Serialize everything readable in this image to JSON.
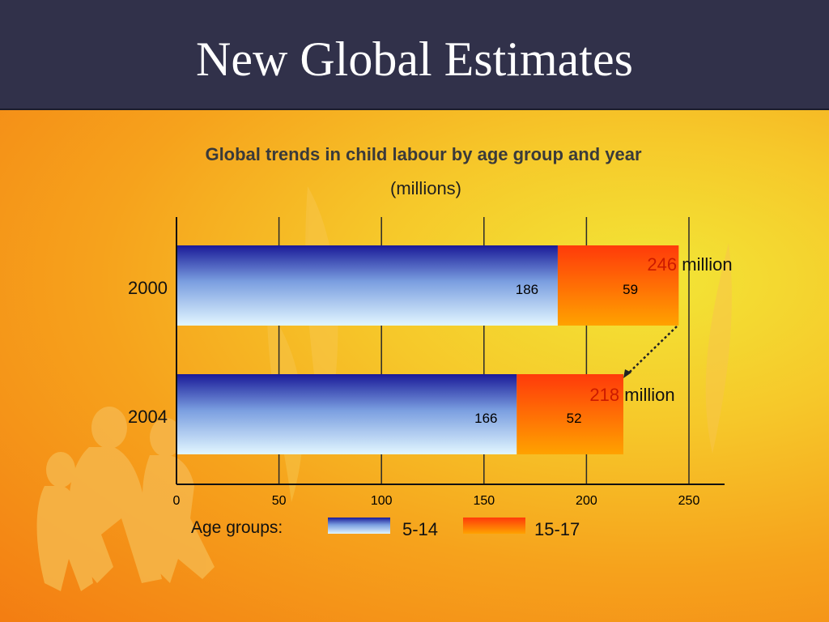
{
  "slide": {
    "title": "New Global Estimates"
  },
  "colors": {
    "header_bg": "#31314a",
    "series_5_14_top": "#1a1a98",
    "series_5_14_bottom": "#e2f6ff",
    "series_15_17_top": "#ff3a0a",
    "series_15_17_bottom": "#ffa200",
    "total_highlight": "#cc1a00"
  },
  "chart_data": {
    "type": "bar",
    "orientation": "horizontal",
    "stacked": true,
    "title": "Global trends in child labour by age group and year",
    "subtitle": "(millions)",
    "categories": [
      "2000",
      "2004"
    ],
    "series": [
      {
        "name": "5-14",
        "values": [
          186,
          166
        ]
      },
      {
        "name": "15-17",
        "values": [
          59,
          52
        ]
      }
    ],
    "totals": [
      {
        "value": "246",
        "unit": "million"
      },
      {
        "value": "218",
        "unit": "million"
      }
    ],
    "xlim": [
      0,
      250
    ],
    "xticks": [
      0,
      50,
      100,
      150,
      200,
      250
    ],
    "grid": true,
    "legend": {
      "title": "Age groups:",
      "placement": "bottom"
    }
  }
}
